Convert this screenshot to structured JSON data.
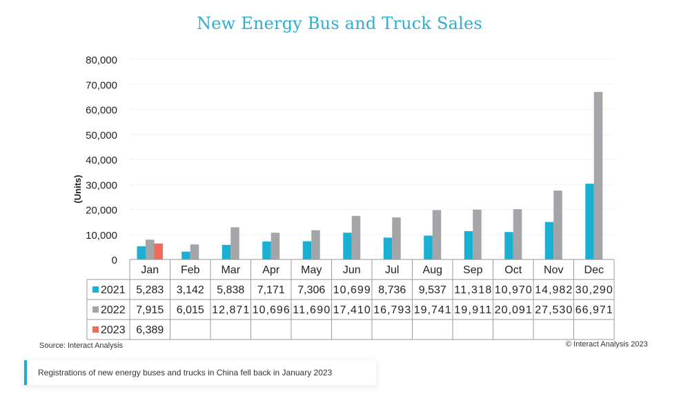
{
  "title": "New Energy Bus and Truck Sales",
  "source": "Source: Interact Analysis",
  "copyright": "© Interact Analysis 2023",
  "caption": "Registrations of new energy buses and trucks in China fell back in January 2023",
  "colors": {
    "title": "#2eaed0",
    "s2021": "#1ab0d4",
    "s2022": "#a3a5a8",
    "s2023": "#ef6b5b",
    "caption_bar": "#1ab0d4"
  },
  "chart_data": {
    "type": "bar",
    "title": "New Energy Bus and Truck Sales",
    "ylabel": "(Units)",
    "xlabel": "",
    "ylim": [
      0,
      80000
    ],
    "yticks": [
      0,
      10000,
      20000,
      30000,
      40000,
      50000,
      60000,
      70000,
      80000
    ],
    "ytick_labels": [
      "0",
      "10,000",
      "20,000",
      "30,000",
      "40,000",
      "50,000",
      "60,000",
      "70,000",
      "80,000"
    ],
    "grid": true,
    "legend": "data-table",
    "categories": [
      "Jan",
      "Feb",
      "Mar",
      "Apr",
      "May",
      "Jun",
      "Jul",
      "Aug",
      "Sep",
      "Oct",
      "Nov",
      "Dec"
    ],
    "series": [
      {
        "name": "2021",
        "color": "#1ab0d4",
        "values": [
          5283,
          3142,
          5838,
          7171,
          7306,
          10699,
          8736,
          9537,
          11318,
          10970,
          14982,
          30290
        ],
        "labels": [
          "5,283",
          "3,142",
          "5,838",
          "7,171",
          "7,306",
          "10,699",
          "8,736",
          "9,537",
          "11,318",
          "10,970",
          "14,982",
          "30,290"
        ]
      },
      {
        "name": "2022",
        "color": "#a3a5a8",
        "values": [
          7915,
          6015,
          12871,
          10696,
          11690,
          17410,
          16793,
          19741,
          19911,
          20091,
          27530,
          66971
        ],
        "labels": [
          "7,915",
          "6,015",
          "12,871",
          "10,696",
          "11,690",
          "17,410",
          "16,793",
          "19,741",
          "19,911",
          "20,091",
          "27,530",
          "66,971"
        ]
      },
      {
        "name": "2023",
        "color": "#ef6b5b",
        "values": [
          6389,
          null,
          null,
          null,
          null,
          null,
          null,
          null,
          null,
          null,
          null,
          null
        ],
        "labels": [
          "6,389",
          "",
          "",
          "",
          "",
          "",
          "",
          "",
          "",
          "",
          "",
          ""
        ]
      }
    ]
  }
}
